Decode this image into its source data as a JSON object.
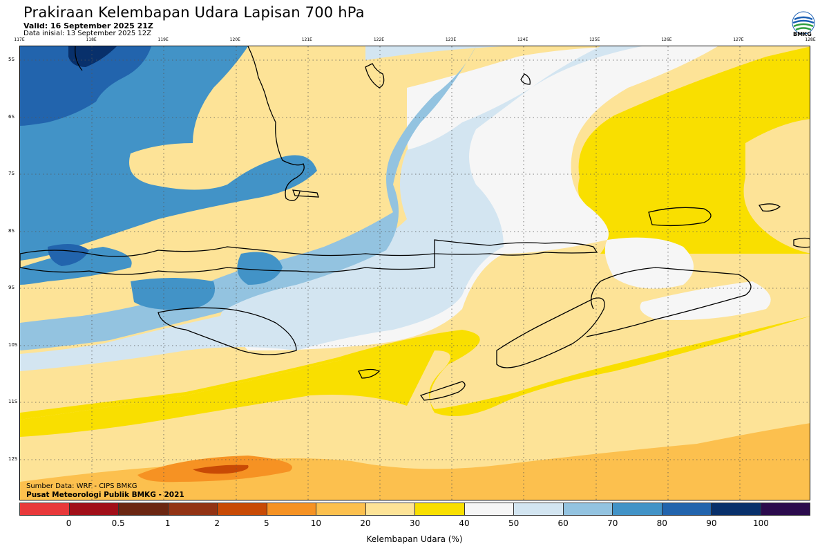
{
  "title": "Prakiraan Kelembapan Udara Lapisan 700 hPa",
  "valid": "Valid: 16 September 2025 21Z",
  "init": "Data inisial: 13 September 2025 12Z",
  "logo_text": "BMKG",
  "longitudes": [
    "117E",
    "118E",
    "119E",
    "120E",
    "121E",
    "122E",
    "123E",
    "124E",
    "125E",
    "126E",
    "127E",
    "128E"
  ],
  "latitudes": [
    "5S",
    "6S",
    "7S",
    "8S",
    "9S",
    "10S",
    "11S",
    "12S"
  ],
  "credits": {
    "source": "Sumber Data: WRF - CIPS BMKG",
    "org": "Pusat Meteorologi Publik BMKG - 2021"
  },
  "colorbar": {
    "title": "Kelembapan Udara (%)",
    "ticks": [
      "0",
      "0.5",
      "1",
      "2",
      "5",
      "10",
      "20",
      "30",
      "40",
      "50",
      "60",
      "70",
      "80",
      "90",
      "100"
    ],
    "colors": [
      "#e8383a",
      "#a10f19",
      "#6b2612",
      "#923314",
      "#c84a05",
      "#f69223",
      "#fcc04e",
      "#fde397",
      "#f9df00",
      "#f6f6f6",
      "#d3e5f1",
      "#93c3e0",
      "#4293c7",
      "#2264ad",
      "#08306b",
      "#2b0b4d"
    ]
  }
}
